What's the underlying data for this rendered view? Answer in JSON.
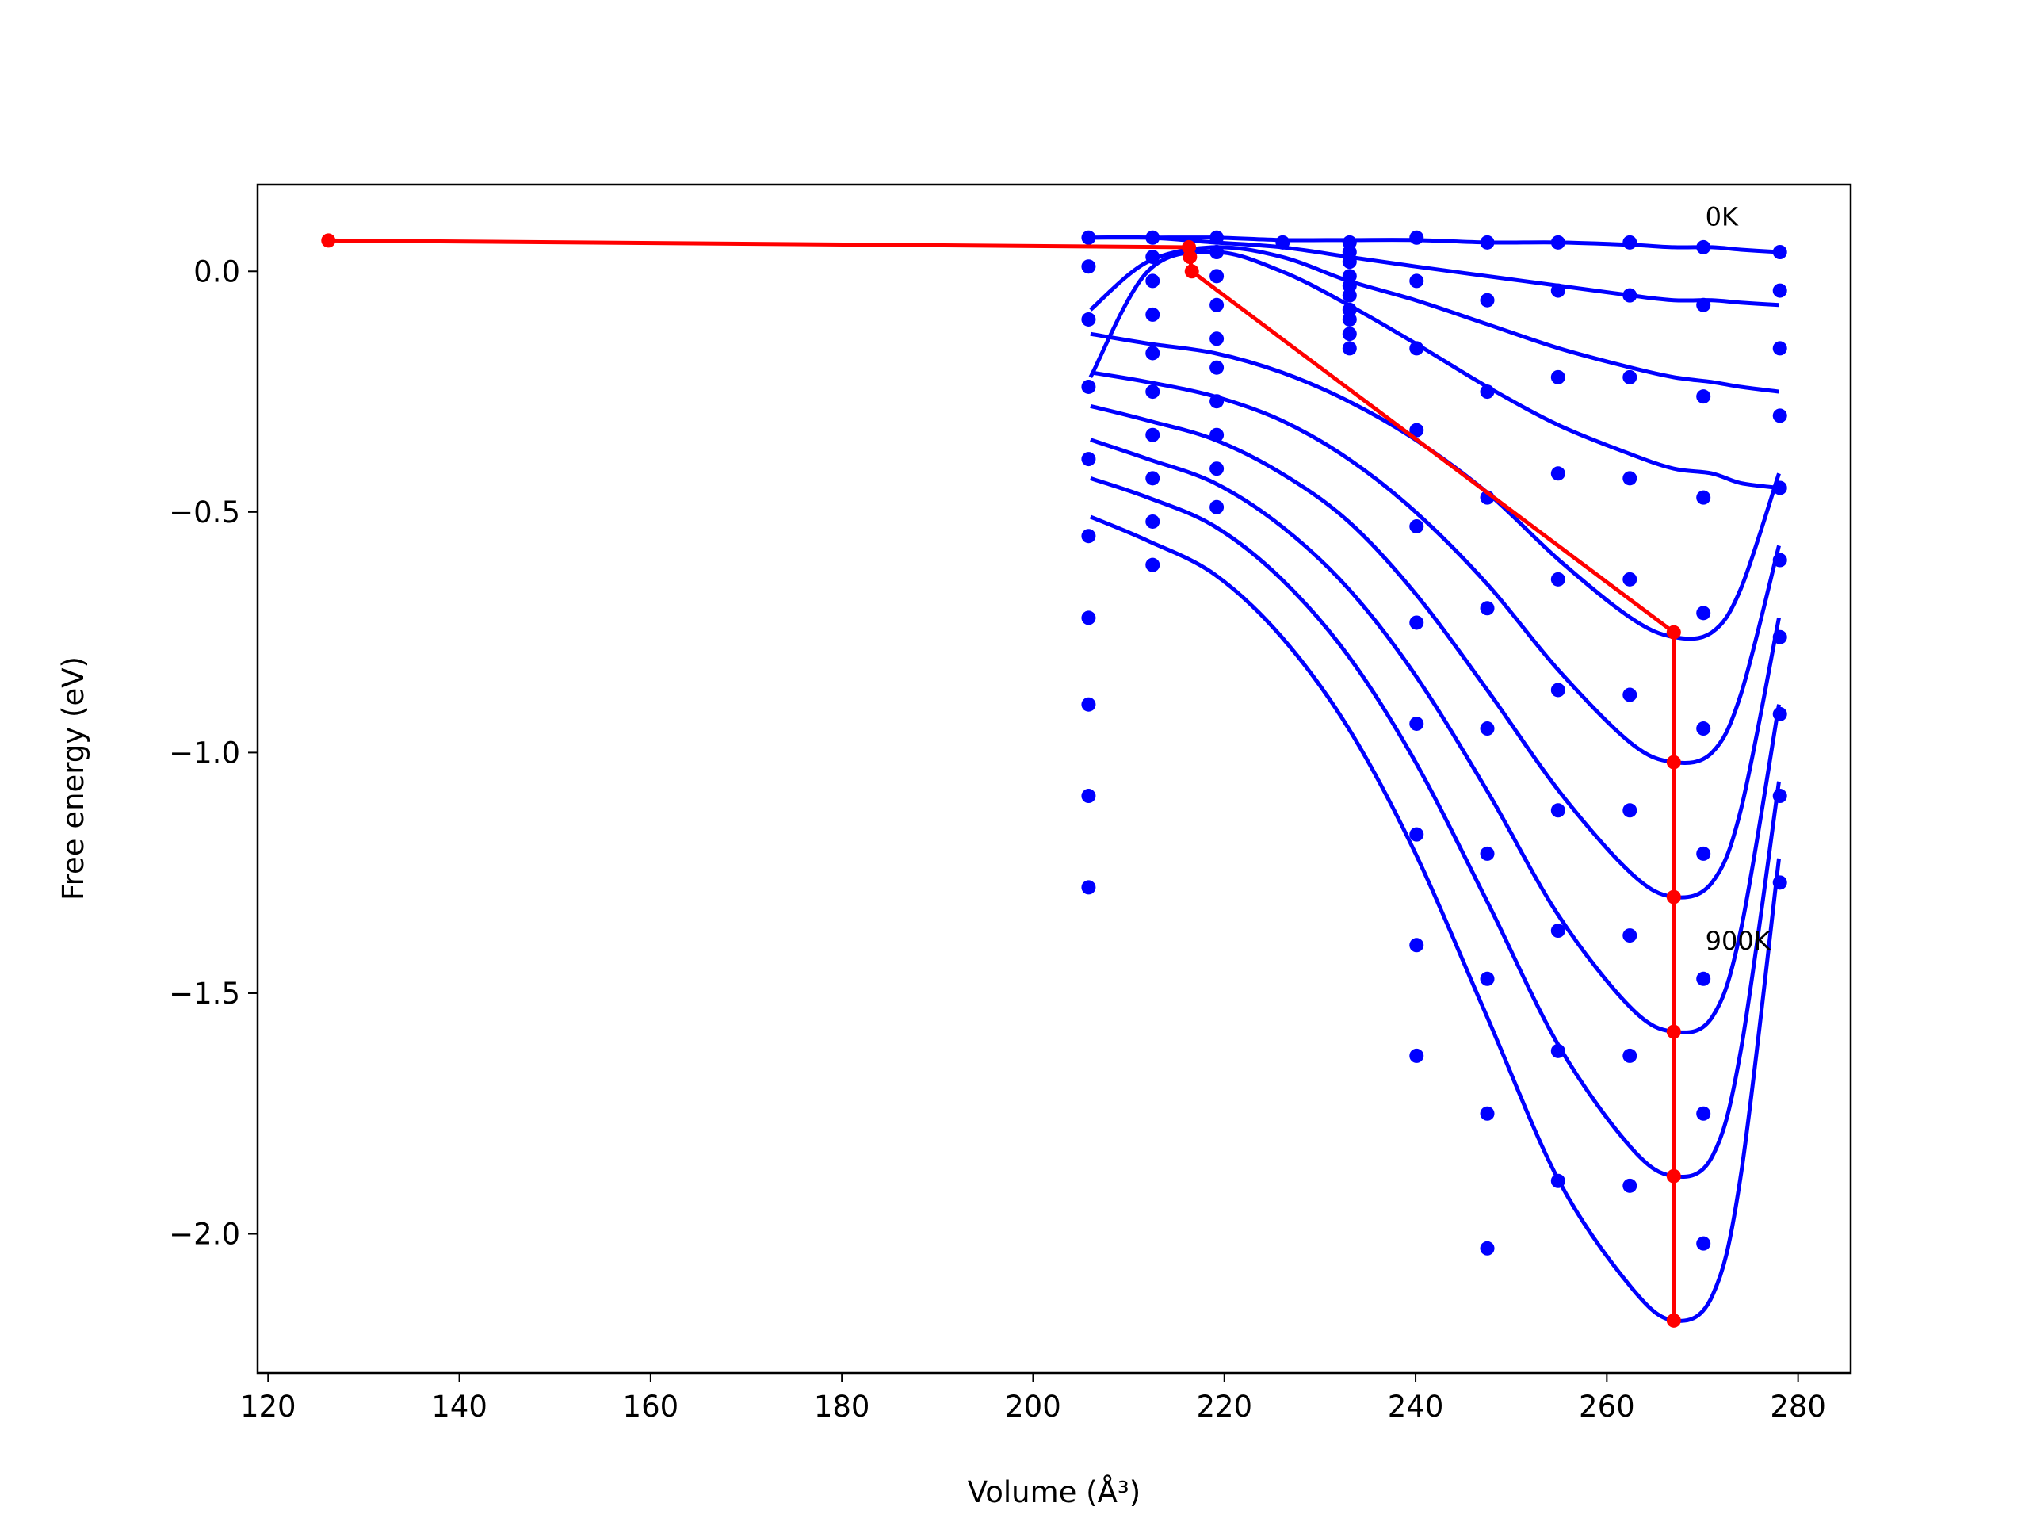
{
  "chart_data": {
    "type": "scatter",
    "x_label": "Volume (Å³)",
    "y_label": "Free energy (eV)",
    "annotations": [
      {
        "text": "0K",
        "x": 270.3,
        "y": 0.115
      },
      {
        "text": "900K",
        "x": 270.3,
        "y": -1.39
      }
    ],
    "xlim": [
      118.9,
      285.5
    ],
    "ylim": [
      -2.289,
      0.18
    ],
    "xticks": [
      120,
      140,
      160,
      180,
      200,
      220,
      240,
      260,
      280
    ],
    "yticks": [
      {
        "value": 0.0,
        "label": "0.0"
      },
      {
        "value": -0.5,
        "label": "−0.5"
      },
      {
        "value": -1.0,
        "label": "−1.0"
      },
      {
        "value": -1.5,
        "label": "−1.5"
      },
      {
        "value": -2.0,
        "label": "−2.0"
      }
    ],
    "point_color": "#0000ff",
    "points": {
      "x": [
        205.8,
        205.8,
        205.8,
        205.8,
        205.8,
        205.8,
        205.8,
        205.8,
        205.8,
        205.8,
        212.5,
        212.5,
        212.5,
        212.5,
        212.5,
        212.5,
        212.5,
        212.5,
        212.5,
        212.5,
        219.2,
        219.2,
        219.2,
        219.2,
        219.2,
        219.2,
        219.2,
        219.2,
        219.2,
        219.2,
        226.1,
        233.1,
        233.1,
        233.1,
        233.1,
        233.1,
        233.1,
        233.1,
        233.1,
        233.1,
        233.1,
        240.1,
        240.1,
        240.1,
        240.1,
        240.1,
        240.1,
        240.1,
        240.1,
        240.1,
        240.1,
        247.5,
        247.5,
        247.5,
        247.5,
        247.5,
        247.5,
        247.5,
        247.5,
        247.5,
        247.5,
        254.9,
        254.9,
        254.9,
        254.9,
        254.9,
        254.9,
        254.9,
        254.9,
        254.9,
        254.9,
        262.4,
        262.4,
        262.4,
        262.4,
        262.4,
        262.4,
        262.4,
        262.4,
        262.4,
        262.4,
        270.1,
        270.1,
        270.1,
        270.1,
        270.1,
        270.1,
        270.1,
        270.1,
        270.1,
        270.1,
        278.1,
        278.1,
        278.1,
        278.1,
        278.1,
        278.1,
        278.1,
        278.1,
        278.1,
        278.1
      ],
      "y": [
        0.07,
        0.01,
        -0.1,
        -0.24,
        -0.39,
        -0.55,
        -0.72,
        -0.9,
        -1.09,
        -1.28,
        0.07,
        0.03,
        -0.02,
        -0.09,
        -0.17,
        -0.25,
        -0.34,
        -0.43,
        -0.52,
        -0.61,
        0.07,
        0.04,
        -0.01,
        -0.07,
        -0.14,
        -0.2,
        -0.27,
        -0.34,
        -0.41,
        -0.49,
        0.06,
        0.06,
        0.04,
        0.02,
        -0.01,
        -0.03,
        -0.05,
        -0.08,
        -0.1,
        -0.13,
        -0.16,
        0.07,
        -0.02,
        -0.16,
        -0.33,
        -0.53,
        -0.73,
        -0.94,
        -1.17,
        -1.4,
        -1.63,
        0.06,
        -0.06,
        -0.25,
        -0.47,
        -0.7,
        -0.95,
        -1.21,
        -1.47,
        -1.75,
        -2.03,
        0.06,
        -0.04,
        -0.22,
        -0.42,
        -0.64,
        -0.87,
        -1.12,
        -1.37,
        -1.62,
        -1.89,
        0.06,
        -0.05,
        -0.22,
        -0.43,
        -0.64,
        -0.88,
        -1.12,
        -1.38,
        -1.63,
        -1.9,
        0.05,
        -0.07,
        -0.26,
        -0.47,
        -0.71,
        -0.95,
        -1.21,
        -1.47,
        -1.75,
        -2.02,
        0.04,
        -0.04,
        -0.16,
        -0.3,
        -0.45,
        -0.6,
        -0.76,
        -0.92,
        -1.09,
        -1.27
      ]
    },
    "curve_color": "#0000ff",
    "curves": [
      {
        "x": [
          206,
          212,
          219,
          226,
          233,
          240,
          247.5,
          255,
          262.5,
          267,
          271,
          274,
          278
        ],
        "y": [
          0.07,
          0.07,
          0.07,
          0.065,
          0.065,
          0.065,
          0.06,
          0.06,
          0.055,
          0.05,
          0.05,
          0.045,
          0.04
        ]
      },
      {
        "x": [
          206,
          212,
          219,
          226,
          233,
          240,
          247.5,
          255,
          262.5,
          267,
          271,
          274,
          278
        ],
        "y": [
          0.07,
          0.07,
          0.06,
          0.05,
          0.03,
          0.01,
          -0.01,
          -0.03,
          -0.05,
          -0.06,
          -0.06,
          -0.065,
          -0.07
        ]
      },
      {
        "x": [
          206,
          212,
          219,
          226,
          233,
          240,
          247.5,
          255,
          262.5,
          267,
          271,
          274,
          278
        ],
        "y": [
          -0.08,
          0.02,
          0.05,
          0.03,
          -0.02,
          -0.06,
          -0.11,
          -0.16,
          -0.2,
          -0.22,
          -0.23,
          -0.24,
          -0.25
        ]
      },
      {
        "x": [
          206,
          212,
          219,
          226,
          233,
          240,
          247.5,
          255,
          262.5,
          267,
          271,
          274,
          278
        ],
        "y": [
          -0.22,
          0,
          0.04,
          0,
          -0.07,
          -0.15,
          -0.24,
          -0.32,
          -0.38,
          -0.41,
          -0.42,
          -0.44,
          -0.45
        ]
      },
      {
        "x": [
          206,
          212,
          219,
          226,
          233,
          240,
          247.5,
          255,
          262.5,
          267,
          271,
          274,
          278
        ],
        "y": [
          -0.13,
          -0.15,
          -0.17,
          -0.21,
          -0.27,
          -0.35,
          -0.46,
          -0.6,
          -0.72,
          -0.76,
          -0.75,
          -0.66,
          -0.42
        ]
      },
      {
        "x": [
          206,
          212,
          219,
          226,
          233,
          240,
          247.5,
          255,
          262.5,
          267,
          271,
          274,
          278
        ],
        "y": [
          -0.21,
          -0.23,
          -0.26,
          -0.31,
          -0.39,
          -0.5,
          -0.65,
          -0.83,
          -0.98,
          -1.02,
          -1.0,
          -0.88,
          -0.57
        ]
      },
      {
        "x": [
          206,
          212,
          219,
          226,
          233,
          240,
          247.5,
          255,
          262.5,
          267,
          271,
          274,
          278
        ],
        "y": [
          -0.28,
          -0.31,
          -0.35,
          -0.42,
          -0.52,
          -0.67,
          -0.87,
          -1.08,
          -1.25,
          -1.3,
          -1.27,
          -1.12,
          -0.72
        ]
      },
      {
        "x": [
          206,
          212,
          219,
          226,
          233,
          240,
          247.5,
          255,
          262.5,
          267,
          271,
          274,
          278
        ],
        "y": [
          -0.35,
          -0.39,
          -0.44,
          -0.53,
          -0.66,
          -0.84,
          -1.08,
          -1.34,
          -1.53,
          -1.58,
          -1.55,
          -1.37,
          -0.9
        ]
      },
      {
        "x": [
          206,
          212,
          219,
          226,
          233,
          240,
          247.5,
          255,
          262.5,
          267,
          271,
          274,
          278
        ],
        "y": [
          -0.43,
          -0.47,
          -0.53,
          -0.64,
          -0.8,
          -1.02,
          -1.31,
          -1.61,
          -1.82,
          -1.88,
          -1.84,
          -1.62,
          -1.06
        ]
      },
      {
        "x": [
          206,
          212,
          219,
          226,
          233,
          240,
          247.5,
          255,
          262.5,
          267,
          271,
          274,
          278
        ],
        "y": [
          -0.51,
          -0.56,
          -0.63,
          -0.76,
          -0.95,
          -1.21,
          -1.55,
          -1.89,
          -2.11,
          -2.18,
          -2.13,
          -1.88,
          -1.22
        ]
      }
    ],
    "path_color": "#ff0000",
    "path": {
      "x": [
        126.3,
        216.3,
        216.4,
        216.6,
        267.0,
        267.0,
        267.0,
        267.0,
        267.0,
        267.0
      ],
      "y": [
        0.064,
        0.05,
        0.03,
        0.0,
        -0.75,
        -1.02,
        -1.3,
        -1.58,
        -1.88,
        -2.18
      ]
    }
  }
}
